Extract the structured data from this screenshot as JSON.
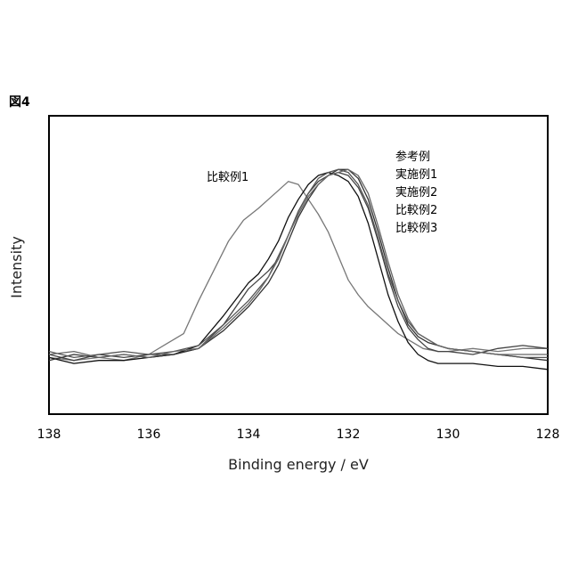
{
  "figure_label": "図4",
  "chart_data": {
    "type": "line",
    "title": "",
    "xlabel": "Binding energy / eV",
    "ylabel": "Intensity",
    "xlim": [
      138,
      128
    ],
    "x_reversed": true,
    "ylim": [
      0,
      1
    ],
    "y_ticks_shown": false,
    "grid": false,
    "x_ticks": [
      138,
      136,
      134,
      132,
      130,
      128
    ],
    "legend_placement": "top-right",
    "legend": [
      "参考例",
      "実施例1",
      "実施例2",
      "比較例2",
      "比較例3"
    ],
    "annotations": [
      {
        "text": "比較例1",
        "x": 134.5,
        "y": 0.77
      }
    ],
    "series": [
      {
        "name": "比較例1",
        "color": "#777777",
        "x": [
          138,
          137.5,
          137,
          136.5,
          136,
          135.6,
          135.3,
          135,
          134.7,
          134.4,
          134.1,
          133.8,
          133.6,
          133.4,
          133.2,
          133.0,
          132.8,
          132.6,
          132.4,
          132.2,
          132.0,
          131.8,
          131.6,
          131.4,
          131.2,
          131,
          130.8,
          130.5,
          130.2,
          130,
          129.5,
          129,
          128.5,
          128
        ],
        "y": [
          0.19,
          0.18,
          0.19,
          0.18,
          0.2,
          0.24,
          0.27,
          0.38,
          0.48,
          0.58,
          0.65,
          0.69,
          0.72,
          0.75,
          0.78,
          0.77,
          0.72,
          0.67,
          0.61,
          0.53,
          0.45,
          0.4,
          0.36,
          0.33,
          0.3,
          0.27,
          0.25,
          0.22,
          0.21,
          0.21,
          0.22,
          0.21,
          0.22,
          0.22
        ]
      },
      {
        "name": "参考例",
        "color": "#444444",
        "x": [
          138,
          137.5,
          137,
          136.5,
          136,
          135.5,
          135,
          134.5,
          134,
          133.8,
          133.6,
          133.4,
          133.2,
          133,
          132.8,
          132.6,
          132.4,
          132.2,
          132,
          131.8,
          131.6,
          131.4,
          131.2,
          131,
          130.8,
          130.6,
          130.4,
          130.2,
          130,
          129.5,
          129,
          128.5,
          128
        ],
        "y": [
          0.2,
          0.18,
          0.2,
          0.19,
          0.2,
          0.2,
          0.22,
          0.3,
          0.42,
          0.45,
          0.48,
          0.52,
          0.6,
          0.68,
          0.74,
          0.78,
          0.8,
          0.81,
          0.8,
          0.76,
          0.69,
          0.58,
          0.46,
          0.36,
          0.29,
          0.25,
          0.22,
          0.21,
          0.21,
          0.2,
          0.22,
          0.23,
          0.22
        ]
      },
      {
        "name": "実施例1",
        "color": "#111111",
        "x": [
          138,
          137.5,
          137,
          136.5,
          136,
          135.5,
          135,
          134.5,
          134,
          133.8,
          133.6,
          133.4,
          133.2,
          133,
          132.8,
          132.6,
          132.4,
          132.2,
          132,
          131.8,
          131.6,
          131.4,
          131.2,
          131,
          130.8,
          130.6,
          130.4,
          130.2,
          130,
          129.5,
          129,
          128.5,
          128
        ],
        "y": [
          0.19,
          0.17,
          0.18,
          0.18,
          0.19,
          0.2,
          0.23,
          0.33,
          0.44,
          0.47,
          0.52,
          0.58,
          0.66,
          0.72,
          0.77,
          0.8,
          0.81,
          0.8,
          0.78,
          0.73,
          0.64,
          0.52,
          0.4,
          0.31,
          0.24,
          0.2,
          0.18,
          0.17,
          0.17,
          0.17,
          0.16,
          0.16,
          0.15
        ]
      },
      {
        "name": "実施例2",
        "color": "#333333",
        "x": [
          138,
          137.5,
          137,
          136.5,
          136,
          135.5,
          135,
          134.5,
          134,
          133.8,
          133.6,
          133.4,
          133.2,
          133,
          132.8,
          132.6,
          132.4,
          132.2,
          132,
          131.8,
          131.6,
          131.4,
          131.2,
          131,
          130.8,
          130.6,
          130.4,
          130.2,
          130,
          129.5,
          129,
          128.5,
          128
        ],
        "y": [
          0.18,
          0.2,
          0.19,
          0.2,
          0.19,
          0.2,
          0.22,
          0.28,
          0.36,
          0.4,
          0.44,
          0.5,
          0.58,
          0.66,
          0.72,
          0.77,
          0.8,
          0.82,
          0.82,
          0.79,
          0.72,
          0.61,
          0.49,
          0.38,
          0.3,
          0.26,
          0.24,
          0.23,
          0.22,
          0.21,
          0.2,
          0.19,
          0.18
        ]
      },
      {
        "name": "比較例2",
        "color": "#555555",
        "x": [
          138,
          137.5,
          137,
          136.5,
          136,
          135.5,
          135,
          134.5,
          134,
          133.8,
          133.6,
          133.4,
          133.2,
          133,
          132.8,
          132.6,
          132.4,
          132.2,
          132,
          131.8,
          131.6,
          131.4,
          131.2,
          131,
          130.8,
          130.6,
          130.4,
          130.2,
          130,
          129.5,
          129,
          128.5,
          128
        ],
        "y": [
          0.21,
          0.19,
          0.2,
          0.21,
          0.2,
          0.21,
          0.23,
          0.3,
          0.38,
          0.42,
          0.46,
          0.53,
          0.6,
          0.68,
          0.74,
          0.79,
          0.81,
          0.82,
          0.81,
          0.77,
          0.7,
          0.59,
          0.47,
          0.38,
          0.31,
          0.27,
          0.25,
          0.23,
          0.22,
          0.21,
          0.2,
          0.19,
          0.19
        ]
      },
      {
        "name": "比較例3",
        "color": "#666666",
        "x": [
          138,
          137.5,
          137,
          136.5,
          136,
          135.5,
          135,
          134.5,
          134,
          133.8,
          133.6,
          133.4,
          133.2,
          133,
          132.8,
          132.6,
          132.4,
          132.2,
          132,
          131.8,
          131.6,
          131.4,
          131.2,
          131,
          130.8,
          130.6,
          130.4,
          130.2,
          130,
          129.5,
          129,
          128.5,
          128
        ],
        "y": [
          0.2,
          0.21,
          0.19,
          0.2,
          0.19,
          0.21,
          0.22,
          0.29,
          0.37,
          0.41,
          0.46,
          0.52,
          0.6,
          0.67,
          0.73,
          0.77,
          0.8,
          0.81,
          0.82,
          0.8,
          0.74,
          0.63,
          0.51,
          0.4,
          0.32,
          0.27,
          0.25,
          0.23,
          0.22,
          0.21,
          0.2,
          0.2,
          0.2
        ]
      }
    ]
  }
}
